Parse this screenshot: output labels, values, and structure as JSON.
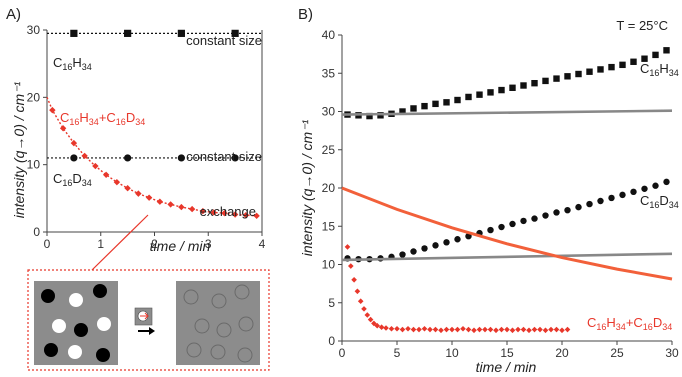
{
  "chart_data": [
    {
      "type": "scatter",
      "panel_label": "A)",
      "xlabel": "time / min",
      "ylabel": "intensity (q→0) / cm⁻¹",
      "xlim": [
        0,
        4
      ],
      "ylim": [
        0,
        30
      ],
      "xticks": [
        "0",
        "1",
        "2",
        "3",
        "4"
      ],
      "yticks": [
        "0",
        "10",
        "20",
        "30"
      ],
      "series": [
        {
          "name": "C16H34",
          "color": "#111111",
          "marker": "square",
          "x": [
            0.5,
            1.5,
            2.5,
            3.5
          ],
          "y": [
            29.5,
            29.5,
            29.5,
            29.5
          ],
          "reference_line": 29.5
        },
        {
          "name": "C16D34",
          "color": "#111111",
          "marker": "circle",
          "x": [
            0.5,
            1.5,
            2.5,
            3.5
          ],
          "y": [
            11,
            11,
            11,
            11
          ],
          "reference_line": 11
        },
        {
          "name": "C16H34+C16D34",
          "color": "#e8372b",
          "marker": "diamond",
          "x": [
            0.1,
            0.3,
            0.5,
            0.7,
            0.9,
            1.1,
            1.3,
            1.5,
            1.7,
            1.9,
            2.1,
            2.3,
            2.5,
            2.7,
            2.9,
            3.1,
            3.3,
            3.5,
            3.7,
            3.9
          ],
          "y": [
            18.1,
            15.4,
            13.2,
            11.3,
            9.8,
            8.5,
            7.4,
            6.5,
            5.7,
            5.1,
            4.5,
            4.1,
            3.7,
            3.4,
            3.1,
            2.9,
            2.8,
            2.6,
            2.5,
            2.4
          ],
          "fit": "exponential decay"
        }
      ],
      "annotations": {
        "top": "constant size",
        "middle": "constant size",
        "bottom": "exchange"
      },
      "labels": {
        "h_base": "C",
        "h_sub1": "16",
        "h_mid": "H",
        "h_sub2": "34",
        "d_base": "C",
        "d_sub1": "16",
        "d_mid": "D",
        "d_sub2": "34",
        "mix_c1": "C",
        "mix_s1": "16",
        "mix_h": "H",
        "mix_s2": "34",
        "mix_plus": "+C",
        "mix_s3": "16",
        "mix_d": "D",
        "mix_s4": "34"
      }
    },
    {
      "type": "scatter",
      "panel_label": "B)",
      "temperature": "T = 25°C",
      "xlabel": "time / min",
      "ylabel": "intensity (q→0) / cm⁻¹",
      "xlim": [
        0,
        30
      ],
      "ylim": [
        0,
        40
      ],
      "xticks": [
        "0",
        "5",
        "10",
        "15",
        "20",
        "25",
        "30"
      ],
      "yticks": [
        "0",
        "5",
        "10",
        "15",
        "20",
        "25",
        "30",
        "35",
        "40"
      ],
      "series": [
        {
          "name": "C16H34",
          "color": "#111111",
          "marker": "square",
          "x": [
            0.5,
            1.5,
            2.5,
            3.5,
            4.5,
            5.5,
            6.5,
            7.5,
            8.5,
            9.5,
            10.5,
            11.5,
            12.5,
            13.5,
            14.5,
            15.5,
            16.5,
            17.5,
            18.5,
            19.5,
            20.5,
            21.5,
            22.5,
            23.5,
            24.5,
            25.5,
            26.5,
            27.5,
            28.5,
            29.5
          ],
          "y": [
            29.6,
            29.5,
            29.4,
            29.5,
            29.7,
            30.0,
            30.4,
            30.7,
            31.0,
            31.2,
            31.5,
            31.9,
            32.2,
            32.5,
            32.8,
            33.1,
            33.4,
            33.7,
            34.0,
            34.3,
            34.6,
            34.9,
            35.2,
            35.5,
            35.8,
            36.1,
            36.5,
            36.9,
            37.4,
            38.0
          ]
        },
        {
          "name": "C16D34",
          "color": "#111111",
          "marker": "circle",
          "x": [
            0.5,
            1.5,
            2.5,
            3.5,
            4.5,
            5.5,
            6.5,
            7.5,
            8.5,
            9.5,
            10.5,
            11.5,
            12.5,
            13.5,
            14.5,
            15.5,
            16.5,
            17.5,
            18.5,
            19.5,
            20.5,
            21.5,
            22.5,
            23.5,
            24.5,
            25.5,
            26.5,
            27.5,
            28.5,
            29.5
          ],
          "y": [
            10.8,
            10.7,
            10.7,
            10.8,
            11.0,
            11.3,
            11.7,
            12.1,
            12.5,
            12.9,
            13.3,
            13.7,
            14.1,
            14.5,
            14.9,
            15.3,
            15.7,
            16.0,
            16.4,
            16.8,
            17.1,
            17.5,
            17.9,
            18.3,
            18.7,
            19.1,
            19.5,
            19.9,
            20.3,
            20.8
          ]
        },
        {
          "name": "C16H34+C16D34",
          "color": "#e8372b",
          "marker": "diamond",
          "x": [
            0.5,
            0.8,
            1.1,
            1.4,
            1.7,
            2.0,
            2.3,
            2.6,
            2.9,
            3.2,
            3.6,
            4.0,
            4.5,
            5.0,
            5.5,
            6.0,
            6.5,
            7.0,
            7.5,
            8.0,
            8.5,
            9.0,
            9.5,
            10.0,
            10.5,
            11.0,
            11.5,
            12.0,
            12.5,
            13.0,
            13.5,
            14.0,
            14.5,
            15.0,
            15.5,
            16.0,
            16.5,
            17.0,
            17.5,
            18.0,
            18.5,
            19.0,
            19.5,
            20.0,
            20.5
          ],
          "y": [
            12.3,
            9.8,
            8.0,
            6.5,
            5.2,
            4.2,
            3.4,
            2.8,
            2.3,
            2.0,
            1.8,
            1.7,
            1.6,
            1.6,
            1.5,
            1.6,
            1.5,
            1.5,
            1.6,
            1.5,
            1.5,
            1.4,
            1.5,
            1.5,
            1.5,
            1.6,
            1.5,
            1.4,
            1.5,
            1.5,
            1.5,
            1.4,
            1.5,
            1.5,
            1.4,
            1.5,
            1.5,
            1.4,
            1.5,
            1.5,
            1.4,
            1.5,
            1.5,
            1.4,
            1.5
          ]
        },
        {
          "name": "",
          "type": "line",
          "color": "#888888",
          "x": [
            0,
            30
          ],
          "y": [
            29.6,
            30.1
          ]
        },
        {
          "name": "",
          "type": "line",
          "color": "#888888",
          "x": [
            0,
            30
          ],
          "y": [
            10.6,
            11.4
          ]
        },
        {
          "name": "",
          "type": "line",
          "color": "#f2603a",
          "x": [
            0,
            5,
            10,
            15,
            20,
            25,
            30
          ],
          "y": [
            20.0,
            17.2,
            14.8,
            12.7,
            10.9,
            9.4,
            8.1
          ]
        }
      ],
      "labels": {
        "h_base": "C",
        "h_sub1": "16",
        "h_mid": "H",
        "h_sub2": "34",
        "d_base": "C",
        "d_sub1": "16",
        "d_mid": "D",
        "d_sub2": "34",
        "mix_c1": "C",
        "mix_s1": "16",
        "mix_h": "H",
        "mix_s2": "34",
        "mix_plus": "+C",
        "mix_s3": "16",
        "mix_d": "D",
        "mix_s4": "34"
      }
    }
  ],
  "colors": {
    "inset_border": "#e8372b",
    "inset_panel": "#8c8c8c"
  },
  "inset": {
    "icons": [
      "black-particle-icon",
      "white-particle-icon",
      "grey-particle-icon",
      "exchange-arrow-icon"
    ]
  }
}
